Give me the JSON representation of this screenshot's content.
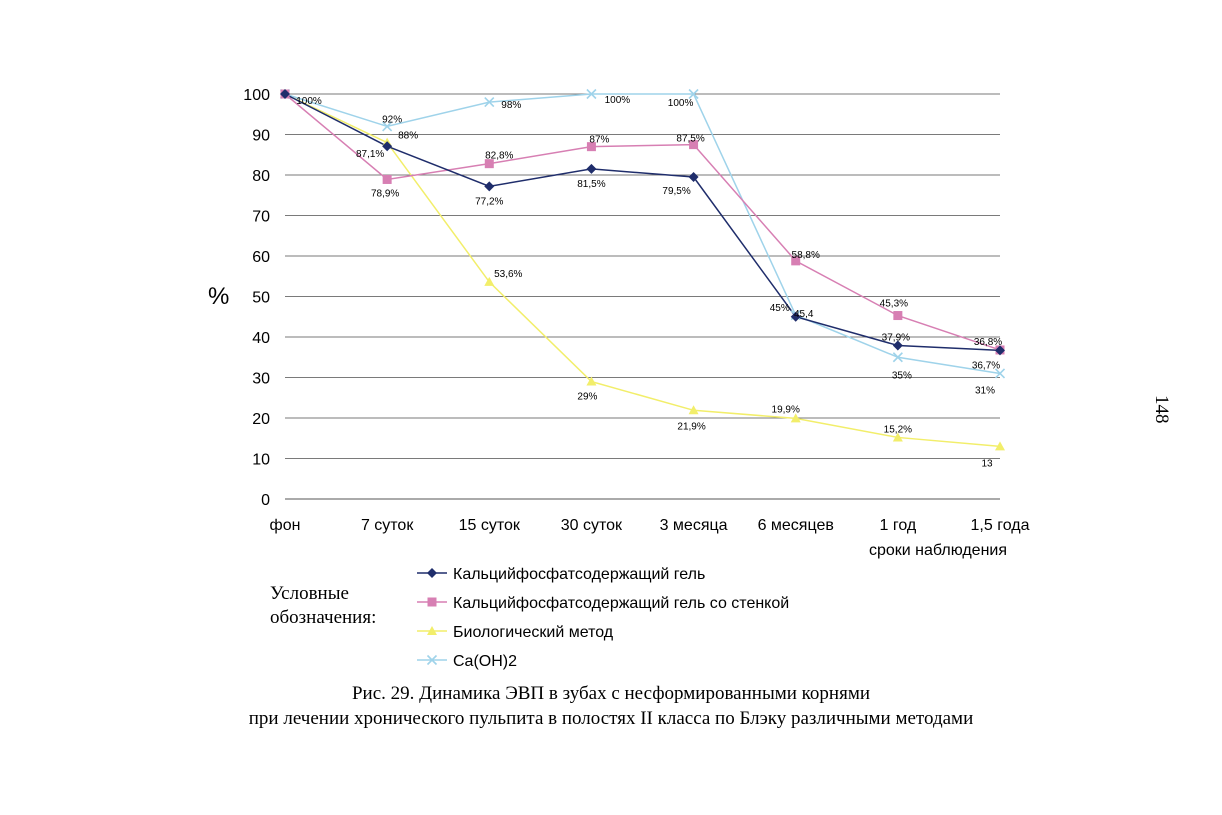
{
  "page_number": "148",
  "legend_title": "Условные обозначения:",
  "caption": {
    "line1": "Рис. 29. Динамика ЭВП в зубах с несформированными корнями",
    "line2": "при лечении хронического пульпита в полостях II класса по Блэку различными методами"
  },
  "chart_data": {
    "type": "line",
    "title": "",
    "ylabel": "%",
    "xlabel": "сроки наблюдения",
    "categories": [
      "фон",
      "7 суток",
      "15 суток",
      "30 суток",
      "3 месяца",
      "6 месяцев",
      "1 год",
      "1,5 года"
    ],
    "ylim": [
      0,
      100
    ],
    "yticks": [
      0,
      10,
      20,
      30,
      40,
      50,
      60,
      70,
      80,
      90,
      100
    ],
    "grid": true,
    "legend_position": "bottom",
    "series": [
      {
        "name": "Кальцийфосфатсодержащий гель",
        "color": "#1f2d6b",
        "marker": "diamond",
        "values": [
          100,
          87.1,
          77.2,
          81.5,
          79.5,
          45,
          37.9,
          36.7
        ],
        "labels": [
          "",
          "87,1%",
          "77,2%",
          "81,5%",
          "79,5%",
          "45%",
          "37,9%",
          "36,7%"
        ]
      },
      {
        "name": "Кальцийфосфатсодержащий гель со стенкой",
        "color": "#d77fb3",
        "marker": "square",
        "values": [
          100,
          78.9,
          82.8,
          87,
          87.5,
          58.8,
          45.3,
          36.8
        ],
        "labels": [
          "",
          "78,9%",
          "82,8%",
          "87%",
          "87,5%",
          "58,8%",
          "45,3%",
          "36,8%"
        ]
      },
      {
        "name": "Биологический метод",
        "color": "#f2ee6a",
        "marker": "triangle",
        "values": [
          100,
          88,
          53.6,
          29,
          21.9,
          19.9,
          15.2,
          13
        ],
        "labels": [
          "",
          "88%",
          "53,6%",
          "29%",
          "21,9%",
          "19,9%",
          "15,2%",
          "13"
        ]
      },
      {
        "name": "Ca(OH)2",
        "color": "#9fd3ea",
        "marker": "x",
        "values": [
          100,
          92,
          98,
          100,
          100,
          45.4,
          35,
          31
        ],
        "labels": [
          "100%",
          "92%",
          "98%",
          "100%",
          "100%",
          "45,4",
          "35%",
          "31%"
        ]
      }
    ]
  }
}
